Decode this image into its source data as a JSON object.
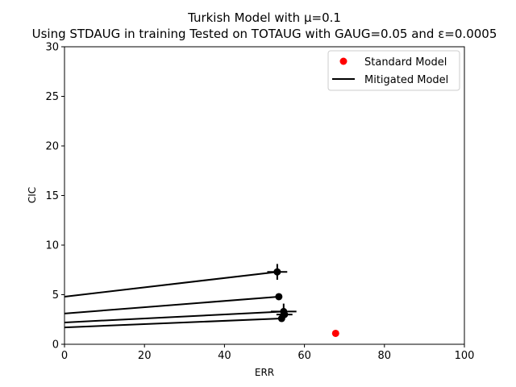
{
  "chart_data": {
    "type": "scatter",
    "title_line1": "Turkish Model with μ=0.1",
    "title_line2": "Using STDAUG in training Tested on TOTAUG with GAUG=0.05 and ε=0.0005",
    "xlabel": "ERR",
    "ylabel": "CIC",
    "xlim": [
      0,
      100
    ],
    "ylim": [
      0,
      30
    ],
    "xticks": [
      "0",
      "20",
      "40",
      "60",
      "80",
      "100"
    ],
    "yticks": [
      "0",
      "5",
      "10",
      "15",
      "20",
      "25",
      "30"
    ],
    "grid": false,
    "legend_position": "top-right",
    "legend": {
      "standard_label": "Standard Model",
      "mitigated_label": "Mitigated Model"
    },
    "standard_model": {
      "color": "#ff0000",
      "points": [
        {
          "x": 67.8,
          "y": 1.1
        }
      ]
    },
    "mitigated_model": {
      "color": "#000000",
      "points": [
        {
          "x": 53.2,
          "y": 7.3,
          "xerr": 2.5,
          "yerr": 0.8
        },
        {
          "x": 53.6,
          "y": 4.8,
          "xerr": 0.0,
          "yerr": 0.0
        },
        {
          "x": 54.8,
          "y": 3.3,
          "xerr": 3.2,
          "yerr": 0.8
        },
        {
          "x": 55.0,
          "y": 3.0,
          "xerr": 2.0,
          "yerr": 0.3
        },
        {
          "x": 54.3,
          "y": 2.6,
          "xerr": 0.0,
          "yerr": 0.3
        }
      ],
      "lines": [
        {
          "x": [
            0,
            53.2
          ],
          "y": [
            4.8,
            7.3
          ]
        },
        {
          "x": [
            0,
            53.6
          ],
          "y": [
            3.1,
            4.8
          ]
        },
        {
          "x": [
            0,
            54.8
          ],
          "y": [
            2.2,
            3.3
          ]
        },
        {
          "x": [
            0,
            54.3
          ],
          "y": [
            1.7,
            2.6
          ]
        }
      ]
    }
  }
}
